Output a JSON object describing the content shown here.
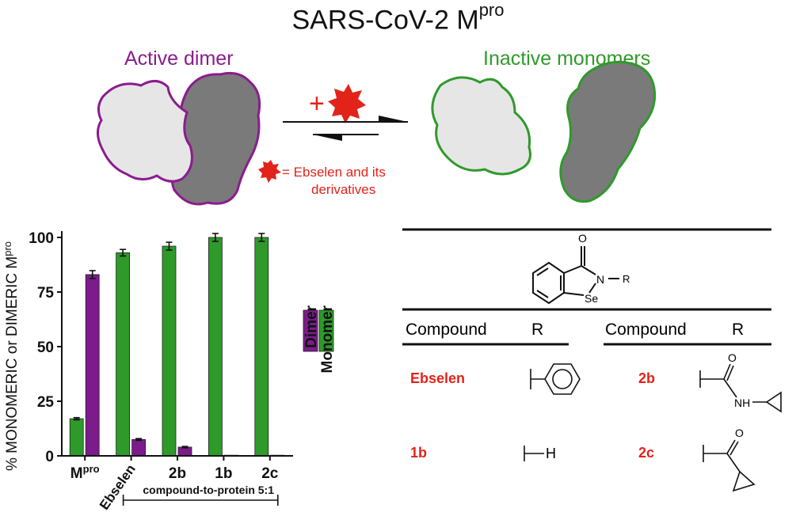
{
  "title": {
    "main": "SARS-CoV-2 M",
    "sup": "pro"
  },
  "scheme": {
    "left_label": "Active dimer",
    "right_label": "Inactive monomers",
    "plus_sign": "+",
    "legend_line1": "= Ebselen and its",
    "legend_line2": "derivatives",
    "colors": {
      "dimer_outline": "#8b1c8e",
      "monomer_outline": "#2f9a2b",
      "light_fill": "#e6e6e6",
      "dark_fill": "#7a7a7a",
      "star": "#e2231a"
    }
  },
  "chart_data": {
    "type": "bar",
    "ylabel": "% MONOMERIC or DIMERIC M",
    "ylabel_sup": "pro",
    "ylim": [
      0,
      100
    ],
    "yticks": [
      0,
      25,
      50,
      75,
      100
    ],
    "categories": [
      "Mpro",
      "Ebselen",
      "2b",
      "1b",
      "2c"
    ],
    "category_main": [
      "M",
      "Ebselen",
      "2b",
      "1b",
      "2c"
    ],
    "category_sup": [
      "pro",
      "",
      "",
      "",
      ""
    ],
    "series": [
      {
        "name": "Monomer",
        "color": "#2d9a2a",
        "values": [
          17,
          93,
          96,
          100,
          100
        ],
        "errors": [
          0.5,
          1.5,
          1.8,
          1.8,
          1.8
        ]
      },
      {
        "name": "Dimer",
        "color": "#7b1c8a",
        "values": [
          83,
          7.5,
          4,
          0.3,
          0.3
        ],
        "errors": [
          1.8,
          0.4,
          0.3,
          0,
          0
        ]
      }
    ],
    "legend": [
      "Dimer",
      "Monomer"
    ],
    "legend_position": "right",
    "bracket_label": "compound-to-protein 5:1"
  },
  "structure": {
    "atom_O": "O",
    "atom_N": "N",
    "atom_R": "R",
    "atom_Se": "Se"
  },
  "table": {
    "headers": [
      "Compound",
      "R",
      "Compound",
      "R"
    ],
    "rows": [
      {
        "left_name": "Ebselen",
        "right_name": "2b",
        "right_label": "NH"
      },
      {
        "left_name": "1b",
        "left_r_text": "H",
        "right_name": "2c",
        "right_label": "O"
      }
    ],
    "label_O_2b": "O"
  }
}
